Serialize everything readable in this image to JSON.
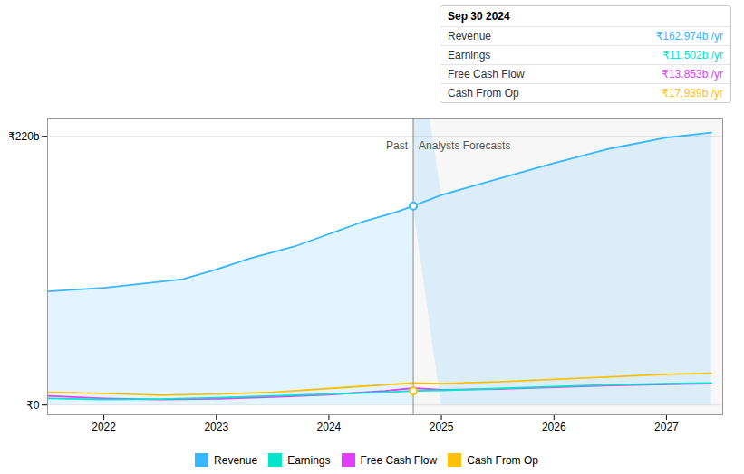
{
  "chart_data": {
    "type": "line",
    "xlim": [
      2021.5,
      2027.5
    ],
    "xticks": [
      2022,
      2023,
      2024,
      2025,
      2026,
      2027
    ],
    "ylim": [
      -8,
      235
    ],
    "yticks": [
      {
        "value": 0,
        "label": "₹0"
      },
      {
        "value": 220,
        "label": "₹220b"
      }
    ],
    "grid": true,
    "legend": "bottom",
    "series": [
      {
        "name": "Revenue",
        "color": "#38b6ff",
        "type": "area",
        "x": [
          2021.5,
          2022,
          2022.3,
          2022.7,
          2023,
          2023.3,
          2023.7,
          2024,
          2024.3,
          2024.6,
          2024.75,
          2024.75,
          2025,
          2025.5,
          2026,
          2026.5,
          2027,
          2027.4
        ],
        "values": [
          93,
          96,
          99,
          103,
          111,
          120,
          130,
          140,
          150,
          158,
          163,
          163,
          172,
          185,
          198,
          210,
          219,
          223
        ]
      },
      {
        "name": "Earnings",
        "color": "#00e5cc",
        "type": "line",
        "x": [
          2021.5,
          2022,
          2022.5,
          2023,
          2023.5,
          2024,
          2024.5,
          2024.75,
          2024.75,
          2025,
          2025.5,
          2026,
          2026.5,
          2027,
          2027.4
        ],
        "values": [
          5.5,
          4.5,
          4.8,
          6.0,
          7.5,
          9.0,
          10.5,
          11.5,
          11.5,
          12.0,
          13.5,
          15.0,
          16.5,
          17.5,
          18.0
        ]
      },
      {
        "name": "Free Cash Flow",
        "color": "#e040fb",
        "type": "line",
        "x": [
          2021.5,
          2022,
          2022.5,
          2023,
          2023.5,
          2024,
          2024.5,
          2024.75,
          2024.75,
          2025,
          2025.5,
          2026,
          2026.5,
          2027,
          2027.4
        ],
        "values": [
          7.5,
          5.5,
          4.5,
          5.0,
          6.5,
          8.5,
          11.5,
          13.85,
          13.85,
          12.5,
          13.0,
          14.5,
          16.0,
          17.0,
          17.5
        ]
      },
      {
        "name": "Cash From Op",
        "color": "#ffc107",
        "type": "line",
        "x": [
          2021.5,
          2022,
          2022.5,
          2023,
          2023.5,
          2024,
          2024.5,
          2024.75,
          2024.75,
          2025,
          2025.5,
          2026,
          2026.5,
          2027,
          2027.4
        ],
        "values": [
          10.5,
          9.5,
          8.0,
          9.0,
          10.5,
          13.5,
          16.5,
          17.94,
          17.94,
          17.5,
          19.0,
          21.0,
          23.0,
          25.0,
          26.0
        ]
      }
    ],
    "divider_x": 2024.75,
    "annotations": {
      "left": "Past",
      "right": "Analysts Forecasts",
      "x": 2024.75,
      "y": 212
    },
    "points": [
      {
        "x": 2024.75,
        "y": 163,
        "color": "#38b6ff"
      },
      {
        "x": 2024.75,
        "y": 11.5,
        "color": "#ffc107"
      }
    ],
    "tooltip": {
      "title": "Sep 30 2024",
      "rows": [
        {
          "label": "Revenue",
          "value": "₹162.974b /yr",
          "color": "#38b6ff"
        },
        {
          "label": "Earnings",
          "value": "₹11.502b /yr",
          "color": "#00e5cc"
        },
        {
          "label": "Free Cash Flow",
          "value": "₹13.853b /yr",
          "color": "#e040fb"
        },
        {
          "label": "Cash From Op",
          "value": "₹17.939b /yr",
          "color": "#ffc107"
        }
      ]
    }
  }
}
